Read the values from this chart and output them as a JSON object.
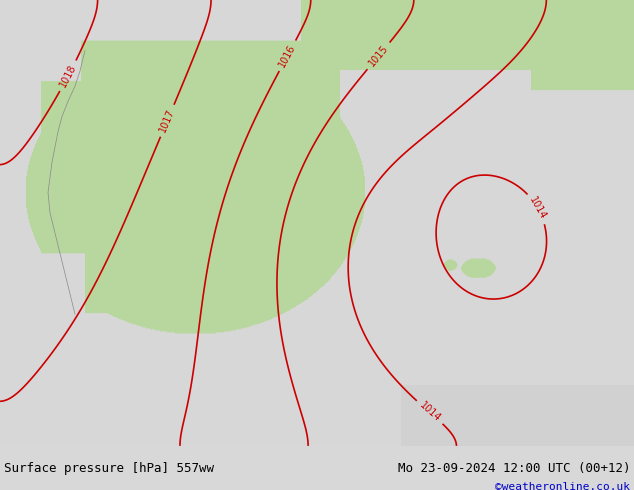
{
  "title_left": "Surface pressure [hPa] 557ww",
  "title_right": "Mo 23-09-2024 12:00 UTC (00+12)",
  "credit": "©weatheronline.co.uk",
  "bg_color": "#d8d8d8",
  "land_color": "#b8d8a0",
  "sea_color": "#d8d8d8",
  "red_color": "#cc0000",
  "blue_color": "#0000cc",
  "black_color": "#000000",
  "bottom_bar_color": "#e8e8e8",
  "text_color": "#000000",
  "blue_text": "#0000cc",
  "figsize": [
    6.34,
    4.9
  ],
  "dpi": 100
}
